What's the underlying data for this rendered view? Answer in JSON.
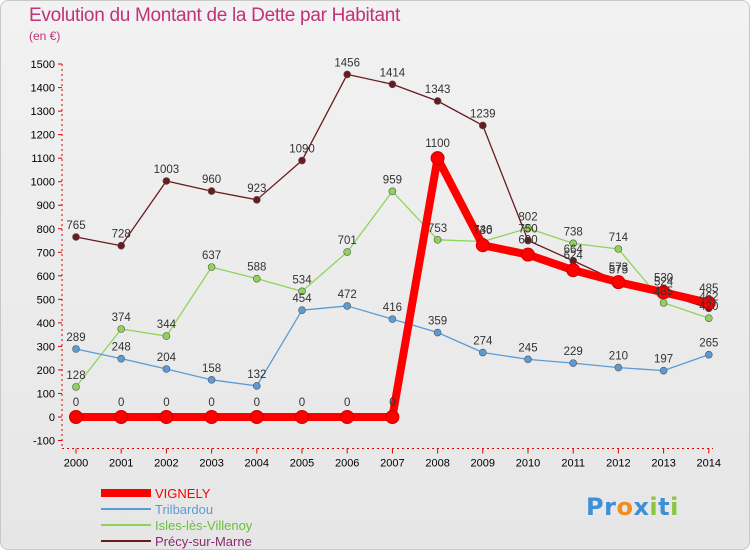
{
  "chart_data": {
    "type": "line",
    "title": "Evolution du Montant de la Dette par Habitant",
    "subtitle": "(en €)",
    "x": [
      2000,
      2001,
      2002,
      2003,
      2004,
      2005,
      2006,
      2007,
      2008,
      2009,
      2010,
      2011,
      2012,
      2013,
      2014
    ],
    "ylim": [
      -100,
      1500
    ],
    "yticks": [
      -100,
      0,
      100,
      200,
      300,
      400,
      500,
      600,
      700,
      800,
      900,
      1000,
      1100,
      1200,
      1300,
      1400,
      1500
    ],
    "grid": false,
    "legend_position": "bottom-left",
    "series": [
      {
        "name": "Précy-sur-Marne",
        "color": "#6b1a1e",
        "width": 1.3,
        "values": [
          765,
          728,
          1003,
          960,
          923,
          1090,
          1456,
          1414,
          1343,
          1239,
          750,
          664,
          575,
          524,
          462
        ]
      },
      {
        "name": "Isles-lès-Villenoy",
        "color": "#8fd45a",
        "width": 1.3,
        "values": [
          128,
          374,
          344,
          637,
          588,
          534,
          701,
          959,
          753,
          746,
          802,
          738,
          714,
          485,
          420
        ]
      },
      {
        "name": "Trilbardou",
        "color": "#5b9bd5",
        "width": 1.3,
        "values": [
          289,
          248,
          204,
          158,
          132,
          454,
          472,
          416,
          359,
          274,
          245,
          229,
          210,
          197,
          265
        ]
      },
      {
        "name": "VIGNELY",
        "color": "#ff0000",
        "width": 8,
        "values": [
          0,
          0,
          0,
          0,
          0,
          0,
          0,
          0,
          1100,
          730,
          690,
          624,
          573,
          530,
          485
        ]
      }
    ],
    "legend": [
      "VIGNELY",
      "Trilbardou",
      "Isles-lès-Villenoy",
      "Précy-sur-Marne"
    ]
  },
  "axis_color": "#e00000",
  "tick_label_color": "#000000",
  "brand": {
    "text": "Proxiti",
    "letters": [
      "P",
      "r",
      "o",
      "x",
      "i",
      "t",
      "i"
    ],
    "colors": [
      "#3d8fd6",
      "#3d8fd6",
      "#f28c1e",
      "#3d8fd6",
      "#8cc63f",
      "#3d8fd6",
      "#8cc63f"
    ]
  }
}
